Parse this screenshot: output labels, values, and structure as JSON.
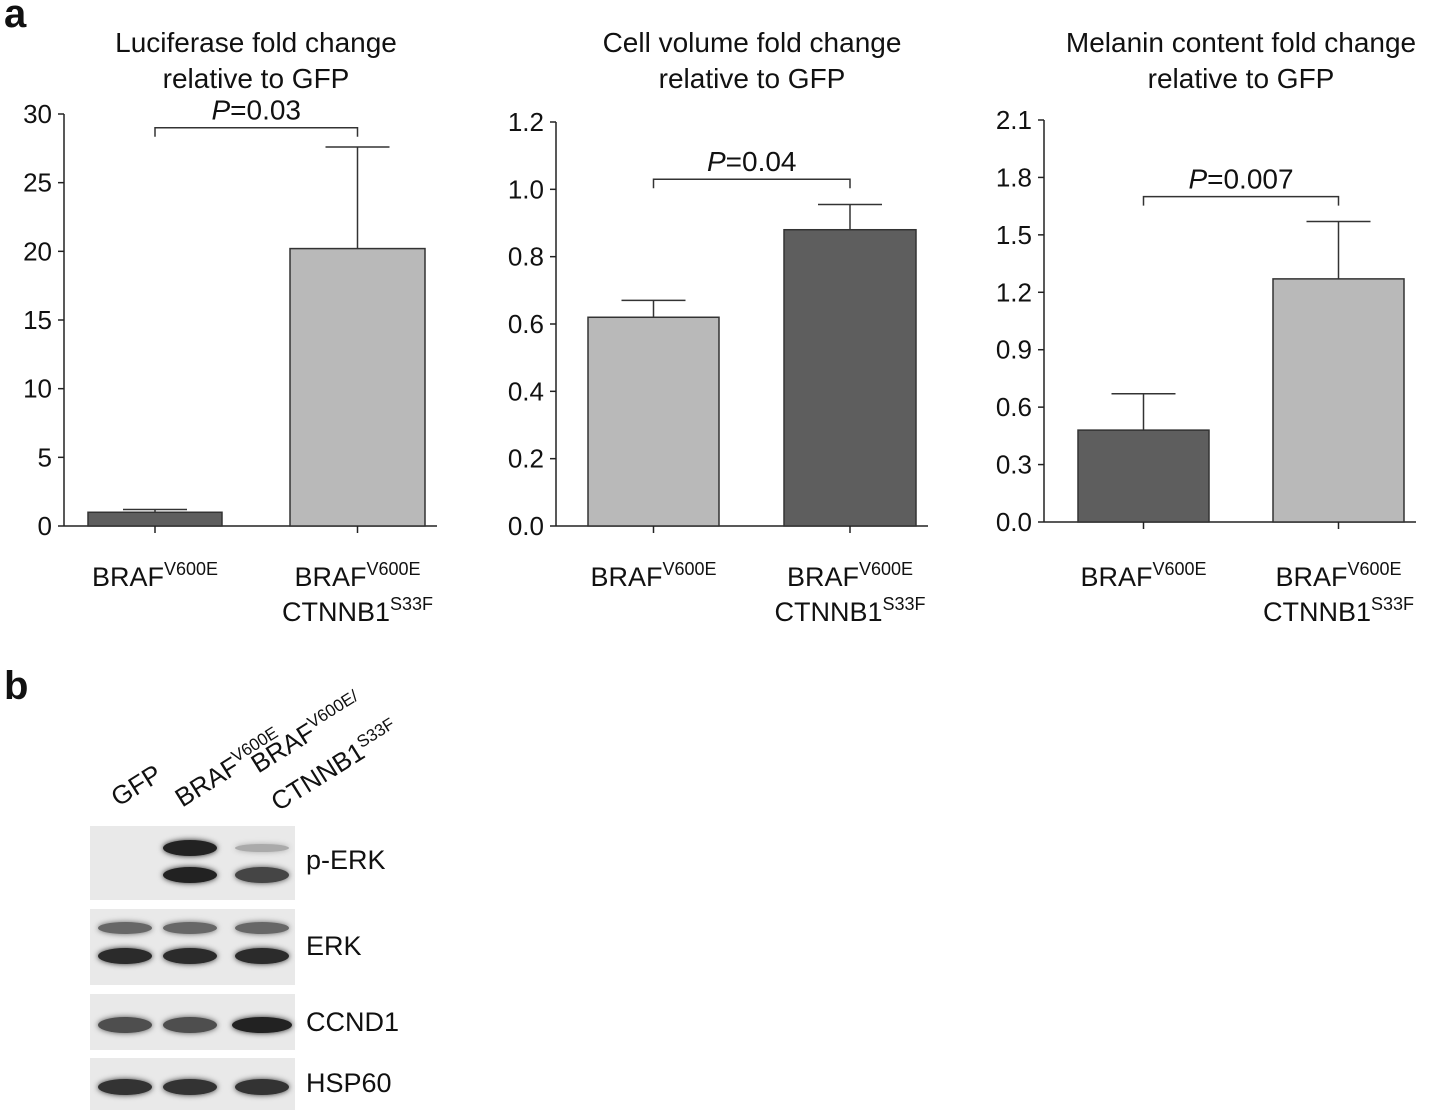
{
  "panels": {
    "a": "a",
    "b": "b"
  },
  "colors": {
    "dark_bar": "#5e5e5e",
    "light_bar": "#b9b9b9",
    "axis": "#222222"
  },
  "chart_data": [
    {
      "type": "bar",
      "title_lines": [
        "Luciferase fold change",
        "relative to GFP"
      ],
      "categories": [
        {
          "main": "BRAF",
          "sup": "V600E",
          "line2_main": "",
          "line2_sup": ""
        },
        {
          "main": "BRAF",
          "sup": "V600E",
          "line2_main": "CTNNB1",
          "line2_sup": "S33F"
        }
      ],
      "values": [
        1.0,
        20.2
      ],
      "errors": [
        0.2,
        7.4
      ],
      "bar_colors": [
        "#5e5e5e",
        "#b9b9b9"
      ],
      "ylim": [
        0,
        30
      ],
      "yticks": [
        "0",
        "5",
        "10",
        "15",
        "20",
        "25",
        "30"
      ],
      "ytick_values": [
        0,
        5,
        10,
        15,
        20,
        25,
        30
      ],
      "pvalue": {
        "p": "P",
        "text": "=0.03",
        "level": 29.0
      }
    },
    {
      "type": "bar",
      "title_lines": [
        "Cell volume fold change",
        "relative to GFP"
      ],
      "categories": [
        {
          "main": "BRAF",
          "sup": "V600E",
          "line2_main": "",
          "line2_sup": ""
        },
        {
          "main": "BRAF",
          "sup": "V600E",
          "line2_main": "CTNNB1",
          "line2_sup": "S33F"
        }
      ],
      "values": [
        0.62,
        0.88
      ],
      "errors": [
        0.05,
        0.075
      ],
      "bar_colors": [
        "#b9b9b9",
        "#5e5e5e"
      ],
      "ylim": [
        0,
        1.2
      ],
      "yticks": [
        "0.0",
        "0.2",
        "0.4",
        "0.6",
        "0.8",
        "1.0",
        "1.2"
      ],
      "ytick_values": [
        0,
        0.2,
        0.4,
        0.6,
        0.8,
        1.0,
        1.2
      ],
      "pvalue": {
        "p": "P",
        "text": "=0.04",
        "level": 1.03
      }
    },
    {
      "type": "bar",
      "title_lines": [
        "Melanin content fold change",
        "relative to GFP"
      ],
      "categories": [
        {
          "main": "BRAF",
          "sup": "V600E",
          "line2_main": "",
          "line2_sup": ""
        },
        {
          "main": "BRAF",
          "sup": "V600E",
          "line2_main": "CTNNB1",
          "line2_sup": "S33F"
        }
      ],
      "values": [
        0.48,
        1.27
      ],
      "errors": [
        0.19,
        0.3
      ],
      "bar_colors": [
        "#5e5e5e",
        "#b9b9b9"
      ],
      "ylim": [
        0,
        2.1
      ],
      "yticks": [
        "0.0",
        "0.3",
        "0.6",
        "0.9",
        "1.2",
        "1.5",
        "1.8",
        "2.1"
      ],
      "ytick_values": [
        0,
        0.3,
        0.6,
        0.9,
        1.2,
        1.5,
        1.8,
        2.1
      ],
      "pvalue": {
        "p": "P",
        "text": "=0.007",
        "level": 1.7
      }
    }
  ],
  "western": {
    "lanes": [
      {
        "main": "GFP",
        "sup": "",
        "line2_main": "",
        "line2_sup": ""
      },
      {
        "main": "BRAF",
        "sup": "V600E",
        "line2_main": "",
        "line2_sup": ""
      },
      {
        "main": "BRAF",
        "sup": "V600E/",
        "line2_main": "CTNNB1",
        "line2_sup": "S33F"
      }
    ],
    "blots": [
      {
        "label": "p-ERK",
        "intensity": [
          0.0,
          0.95,
          0.75
        ]
      },
      {
        "label": "ERK",
        "intensity": [
          0.9,
          0.9,
          0.9
        ]
      },
      {
        "label": "CCND1",
        "intensity": [
          0.7,
          0.7,
          0.95
        ]
      },
      {
        "label": "HSP60",
        "intensity": [
          0.85,
          0.85,
          0.85
        ]
      }
    ]
  }
}
